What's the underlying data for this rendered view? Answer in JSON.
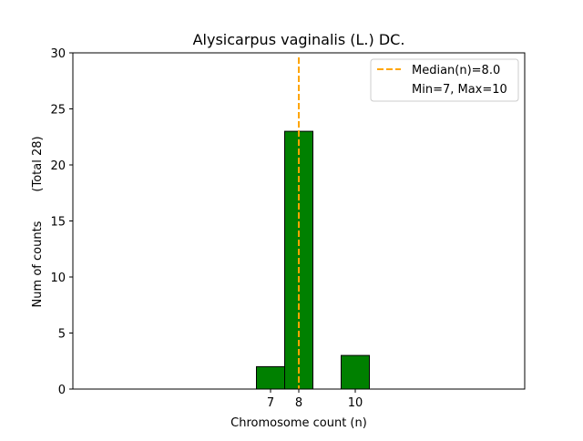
{
  "chart_data": {
    "type": "bar",
    "title": "Alysicarpus vaginalis (L.) DC.",
    "xlabel": "Chromosome count (n)",
    "ylabel": "Num of counts",
    "ylabel_note": "(Total 28)",
    "xlim": [
      0,
      16
    ],
    "ylim": [
      0,
      30
    ],
    "x_ticks": [
      7,
      8,
      10
    ],
    "y_ticks": [
      0,
      5,
      10,
      15,
      20,
      25,
      30
    ],
    "categories": [
      7,
      8,
      10
    ],
    "values": [
      2,
      23,
      3
    ],
    "bar_color": "#008000",
    "median": 8.0,
    "median_color": "#FFA500",
    "legend": {
      "position": "top-right",
      "entries": [
        "Median(n)=8.0",
        "Min=7, Max=10"
      ]
    },
    "grid": false
  }
}
